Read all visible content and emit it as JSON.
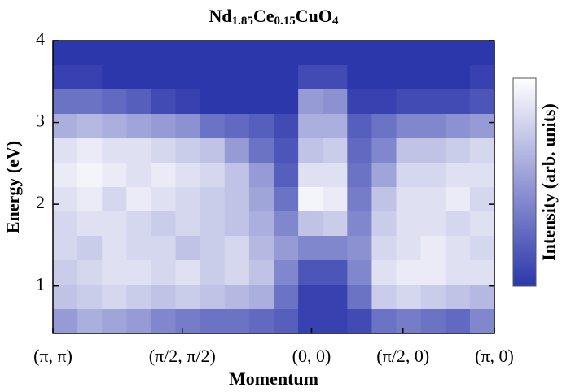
{
  "chart_data": {
    "type": "heatmap",
    "title_parts": [
      "Nd",
      "1.85",
      "Ce",
      "0.15",
      "CuO",
      "4"
    ],
    "xlabel": "Momentum",
    "ylabel": "Energy (eV)",
    "colorbar_label": "Intensity (arb. units)",
    "colormap": [
      "#2c37ab",
      "#ffffff"
    ],
    "xlim": [
      0,
      2.414
    ],
    "ylim": [
      0.42,
      4
    ],
    "xticks": [
      {
        "value": 0,
        "label": "(π, π)"
      },
      {
        "value": 0.707,
        "label": "(π/2, π/2)"
      },
      {
        "value": 1.414,
        "label": "(0, 0)"
      },
      {
        "value": 1.914,
        "label": "(π/2, 0)"
      },
      {
        "value": 2.414,
        "label": "(π, 0)"
      }
    ],
    "yticks": [
      1,
      2,
      3,
      4
    ],
    "z": [
      [
        0,
        0,
        0,
        0,
        0,
        0,
        0,
        0,
        0,
        0,
        0,
        0,
        0,
        0,
        0,
        0,
        0,
        0
      ],
      [
        0.05,
        0.05,
        0,
        0,
        0,
        0,
        0,
        0,
        0,
        0,
        0.1,
        0.1,
        0,
        0,
        0,
        0,
        0,
        0.05
      ],
      [
        0.3,
        0.3,
        0.25,
        0.2,
        0.1,
        0.05,
        0,
        0,
        0,
        0,
        0.5,
        0.45,
        0.05,
        0.05,
        0.1,
        0.1,
        0.1,
        0.15
      ],
      [
        0.6,
        0.65,
        0.6,
        0.55,
        0.5,
        0.45,
        0.3,
        0.25,
        0.2,
        0.1,
        0.6,
        0.6,
        0.2,
        0.3,
        0.4,
        0.4,
        0.45,
        0.5
      ],
      [
        0.85,
        0.9,
        0.85,
        0.85,
        0.8,
        0.75,
        0.7,
        0.5,
        0.3,
        0.15,
        0.7,
        0.75,
        0.25,
        0.4,
        0.7,
        0.7,
        0.75,
        0.8
      ],
      [
        0.9,
        0.95,
        0.9,
        0.85,
        0.9,
        0.85,
        0.8,
        0.7,
        0.5,
        0.2,
        0.85,
        0.85,
        0.3,
        0.55,
        0.8,
        0.8,
        0.85,
        0.85
      ],
      [
        0.85,
        0.9,
        0.8,
        0.9,
        0.85,
        0.8,
        0.75,
        0.7,
        0.55,
        0.3,
        0.95,
        0.9,
        0.35,
        0.7,
        0.85,
        0.85,
        0.9,
        0.8
      ],
      [
        0.8,
        0.85,
        0.85,
        0.8,
        0.75,
        0.8,
        0.75,
        0.7,
        0.6,
        0.4,
        0.7,
        0.75,
        0.4,
        0.75,
        0.85,
        0.85,
        0.8,
        0.85
      ],
      [
        0.8,
        0.75,
        0.85,
        0.8,
        0.8,
        0.7,
        0.75,
        0.8,
        0.65,
        0.5,
        0.4,
        0.4,
        0.45,
        0.8,
        0.85,
        0.9,
        0.85,
        0.8
      ],
      [
        0.75,
        0.8,
        0.85,
        0.85,
        0.8,
        0.85,
        0.75,
        0.8,
        0.7,
        0.4,
        0.15,
        0.15,
        0.4,
        0.85,
        0.9,
        0.9,
        0.85,
        0.85
      ],
      [
        0.7,
        0.75,
        0.8,
        0.75,
        0.7,
        0.75,
        0.7,
        0.65,
        0.6,
        0.3,
        0.05,
        0.05,
        0.3,
        0.75,
        0.8,
        0.75,
        0.7,
        0.65
      ],
      [
        0.5,
        0.6,
        0.55,
        0.5,
        0.4,
        0.35,
        0.3,
        0.3,
        0.25,
        0.2,
        0.05,
        0.05,
        0.1,
        0.3,
        0.35,
        0.3,
        0.25,
        0.4
      ]
    ]
  }
}
